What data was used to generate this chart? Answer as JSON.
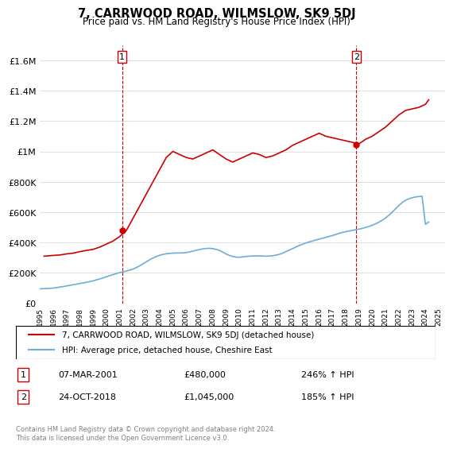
{
  "title": "7, CARRWOOD ROAD, WILMSLOW, SK9 5DJ",
  "subtitle": "Price paid vs. HM Land Registry's House Price Index (HPI)",
  "legend_line1": "7, CARRWOOD ROAD, WILMSLOW, SK9 5DJ (detached house)",
  "legend_line2": "HPI: Average price, detached house, Cheshire East",
  "footnote": "Contains HM Land Registry data © Crown copyright and database right 2024.\nThis data is licensed under the Open Government Licence v3.0.",
  "sale1_label": "1",
  "sale1_date": "07-MAR-2001",
  "sale1_price": 480000,
  "sale1_hpi_pct": "246%",
  "sale2_label": "2",
  "sale2_date": "24-OCT-2018",
  "sale2_price": 1045000,
  "sale2_hpi_pct": "185%",
  "sale1_year": 2001.17,
  "sale2_year": 2018.81,
  "hpi_color": "#6baed6",
  "price_color": "#cc0000",
  "vline_color": "#cc0000",
  "ylim": [
    0,
    1700000
  ],
  "xlim_left": 1995.0,
  "xlim_right": 2025.5,
  "yticks": [
    0,
    200000,
    400000,
    600000,
    800000,
    1000000,
    1200000,
    1400000,
    1600000
  ],
  "ytick_labels": [
    "£0",
    "£200K",
    "£400K",
    "£600K",
    "£800K",
    "£1M",
    "£1.2M",
    "£1.4M",
    "£1.6M"
  ],
  "hpi_years": [
    1995.0,
    1995.25,
    1995.5,
    1995.75,
    1996.0,
    1996.25,
    1996.5,
    1996.75,
    1997.0,
    1997.25,
    1997.5,
    1997.75,
    1998.0,
    1998.25,
    1998.5,
    1998.75,
    1999.0,
    1999.25,
    1999.5,
    1999.75,
    2000.0,
    2000.25,
    2000.5,
    2000.75,
    2001.0,
    2001.25,
    2001.5,
    2001.75,
    2002.0,
    2002.25,
    2002.5,
    2002.75,
    2003.0,
    2003.25,
    2003.5,
    2003.75,
    2004.0,
    2004.25,
    2004.5,
    2004.75,
    2005.0,
    2005.25,
    2005.5,
    2005.75,
    2006.0,
    2006.25,
    2006.5,
    2006.75,
    2007.0,
    2007.25,
    2007.5,
    2007.75,
    2008.0,
    2008.25,
    2008.5,
    2008.75,
    2009.0,
    2009.25,
    2009.5,
    2009.75,
    2010.0,
    2010.25,
    2010.5,
    2010.75,
    2011.0,
    2011.25,
    2011.5,
    2011.75,
    2012.0,
    2012.25,
    2012.5,
    2012.75,
    2013.0,
    2013.25,
    2013.5,
    2013.75,
    2014.0,
    2014.25,
    2014.5,
    2014.75,
    2015.0,
    2015.25,
    2015.5,
    2015.75,
    2016.0,
    2016.25,
    2016.5,
    2016.75,
    2017.0,
    2017.25,
    2017.5,
    2017.75,
    2018.0,
    2018.25,
    2018.5,
    2018.75,
    2019.0,
    2019.25,
    2019.5,
    2019.75,
    2020.0,
    2020.25,
    2020.5,
    2020.75,
    2021.0,
    2021.25,
    2021.5,
    2021.75,
    2022.0,
    2022.25,
    2022.5,
    2022.75,
    2023.0,
    2023.25,
    2023.5,
    2023.75,
    2024.0,
    2024.25
  ],
  "hpi_values": [
    95000,
    96000,
    97000,
    98000,
    100000,
    103000,
    107000,
    110000,
    114000,
    118000,
    122000,
    126000,
    130000,
    134000,
    138000,
    143000,
    148000,
    154000,
    160000,
    167000,
    175000,
    182000,
    189000,
    196000,
    202000,
    207000,
    212000,
    218000,
    225000,
    235000,
    247000,
    260000,
    273000,
    286000,
    298000,
    308000,
    316000,
    322000,
    326000,
    328000,
    330000,
    331000,
    331000,
    332000,
    334000,
    338000,
    343000,
    349000,
    354000,
    358000,
    361000,
    362000,
    360000,
    355000,
    348000,
    337000,
    325000,
    315000,
    308000,
    304000,
    303000,
    305000,
    308000,
    310000,
    311000,
    312000,
    312000,
    311000,
    310000,
    311000,
    313000,
    317000,
    322000,
    330000,
    340000,
    350000,
    360000,
    370000,
    380000,
    389000,
    397000,
    404000,
    410000,
    416000,
    422000,
    428000,
    434000,
    440000,
    446000,
    453000,
    460000,
    466000,
    471000,
    476000,
    480000,
    484000,
    488000,
    493000,
    499000,
    506000,
    514000,
    523000,
    534000,
    547000,
    562000,
    580000,
    600000,
    622000,
    644000,
    663000,
    678000,
    688000,
    695000,
    700000,
    703000,
    705000,
    520000,
    535000
  ],
  "price_years": [
    1995.3,
    1996.0,
    1996.5,
    1997.0,
    1997.5,
    1998.0,
    1998.5,
    1999.0,
    1999.5,
    2000.0,
    2000.5,
    2001.0,
    2001.5,
    2002.0,
    2002.5,
    2003.0,
    2003.5,
    2004.0,
    2004.5,
    2005.0,
    2005.5,
    2006.0,
    2006.5,
    2007.0,
    2007.5,
    2008.0,
    2008.5,
    2009.0,
    2009.5,
    2010.0,
    2010.5,
    2011.0,
    2011.5,
    2012.0,
    2012.5,
    2013.0,
    2013.5,
    2014.0,
    2014.5,
    2015.0,
    2015.5,
    2016.0,
    2016.5,
    2017.0,
    2017.5,
    2018.0,
    2018.5,
    2019.0,
    2019.5,
    2020.0,
    2020.5,
    2021.0,
    2021.5,
    2022.0,
    2022.5,
    2023.0,
    2023.5,
    2024.0,
    2024.25
  ],
  "price_values": [
    310000,
    315000,
    318000,
    325000,
    330000,
    340000,
    348000,
    355000,
    370000,
    390000,
    410000,
    440000,
    480000,
    560000,
    640000,
    720000,
    800000,
    880000,
    960000,
    1000000,
    980000,
    960000,
    950000,
    970000,
    990000,
    1010000,
    980000,
    950000,
    930000,
    950000,
    970000,
    990000,
    980000,
    960000,
    970000,
    990000,
    1010000,
    1040000,
    1060000,
    1080000,
    1100000,
    1120000,
    1100000,
    1090000,
    1080000,
    1070000,
    1060000,
    1050000,
    1080000,
    1100000,
    1130000,
    1160000,
    1200000,
    1240000,
    1270000,
    1280000,
    1290000,
    1310000,
    1340000
  ]
}
